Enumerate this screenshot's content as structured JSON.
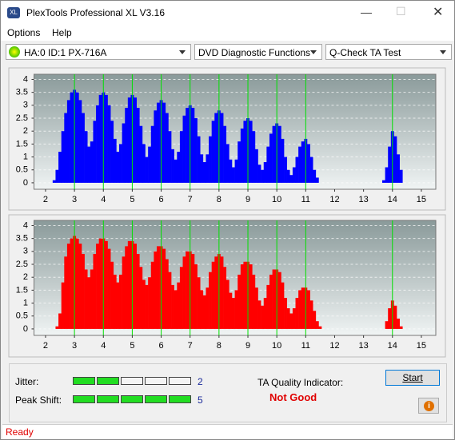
{
  "window": {
    "title": "PlexTools Professional XL V3.16"
  },
  "menu": [
    "Options",
    "Help"
  ],
  "toolbar": {
    "drive": "HA:0 ID:1  PX-716A",
    "function": "DVD Diagnostic Functions",
    "test": "Q-Check TA Test"
  },
  "chart_data": [
    {
      "type": "bar",
      "color": "#0000ff",
      "marker_color": "#00e000",
      "xlim": [
        1.6,
        15.5
      ],
      "ylim": [
        -0.25,
        4.2
      ],
      "xticks": [
        2,
        3,
        4,
        5,
        6,
        7,
        8,
        9,
        10,
        11,
        12,
        13,
        14,
        15
      ],
      "yticks": [
        0,
        0.5,
        1,
        1.5,
        2,
        2.5,
        3,
        3.5,
        4
      ],
      "grid": true,
      "markers": [
        3,
        4,
        5,
        6,
        7,
        8,
        9,
        10,
        11,
        14
      ],
      "x": [
        2,
        2.1,
        2.2,
        2.3,
        2.4,
        2.5,
        2.6,
        2.7,
        2.8,
        2.9,
        3,
        3.1,
        3.2,
        3.3,
        3.4,
        3.5,
        3.6,
        3.7,
        3.8,
        3.9,
        4,
        4.1,
        4.2,
        4.3,
        4.4,
        4.5,
        4.6,
        4.7,
        4.8,
        4.9,
        5,
        5.1,
        5.2,
        5.3,
        5.4,
        5.5,
        5.6,
        5.7,
        5.8,
        5.9,
        6,
        6.1,
        6.2,
        6.3,
        6.4,
        6.5,
        6.6,
        6.7,
        6.8,
        6.9,
        7,
        7.1,
        7.2,
        7.3,
        7.4,
        7.5,
        7.6,
        7.7,
        7.8,
        7.9,
        8,
        8.1,
        8.2,
        8.3,
        8.4,
        8.5,
        8.6,
        8.7,
        8.8,
        8.9,
        9,
        9.1,
        9.2,
        9.3,
        9.4,
        9.5,
        9.6,
        9.7,
        9.8,
        9.9,
        10,
        10.1,
        10.2,
        10.3,
        10.4,
        10.5,
        10.6,
        10.7,
        10.8,
        10.9,
        11,
        11.1,
        11.2,
        11.3,
        11.4,
        11.5,
        11.6,
        11.7,
        11.8,
        11.9,
        12,
        12.1,
        12.2,
        12.3,
        12.4,
        12.5,
        12.6,
        12.7,
        12.8,
        12.9,
        13,
        13.1,
        13.2,
        13.3,
        13.4,
        13.5,
        13.6,
        13.7,
        13.8,
        13.9,
        14,
        14.1,
        14.2,
        14.3,
        14.4,
        14.5,
        14.6,
        14.7,
        14.8,
        14.9
      ],
      "values": [
        0,
        0,
        0,
        0.1,
        0.5,
        1.2,
        2.0,
        2.7,
        3.2,
        3.5,
        3.6,
        3.5,
        3.2,
        2.7,
        2.0,
        1.4,
        1.6,
        2.4,
        3.0,
        3.4,
        3.5,
        3.4,
        3.0,
        2.4,
        1.7,
        1.2,
        1.5,
        2.3,
        2.9,
        3.3,
        3.4,
        3.3,
        2.9,
        2.2,
        1.5,
        1.0,
        1.4,
        2.2,
        2.8,
        3.1,
        3.2,
        3.1,
        2.7,
        2.0,
        1.3,
        0.9,
        1.2,
        2.0,
        2.6,
        2.9,
        3.0,
        2.9,
        2.5,
        1.8,
        1.1,
        0.8,
        1.1,
        1.8,
        2.4,
        2.7,
        2.8,
        2.7,
        2.2,
        1.5,
        0.9,
        0.6,
        0.9,
        1.6,
        2.1,
        2.4,
        2.5,
        2.4,
        2.0,
        1.3,
        0.7,
        0.5,
        0.8,
        1.4,
        1.9,
        2.2,
        2.3,
        2.2,
        1.7,
        1.0,
        0.5,
        0.3,
        0.6,
        1.0,
        1.4,
        1.6,
        1.7,
        1.5,
        1.0,
        0.5,
        0.2,
        0,
        0,
        0,
        0,
        0,
        0,
        0,
        0,
        0,
        0,
        0,
        0,
        0,
        0,
        0,
        0,
        0,
        0,
        0,
        0,
        0,
        0,
        0.1,
        0.6,
        1.4,
        2.0,
        1.8,
        1.1,
        0.5,
        0,
        0,
        0,
        0,
        0,
        0
      ]
    },
    {
      "type": "bar",
      "color": "#ff0000",
      "marker_color": "#00e000",
      "xlim": [
        1.6,
        15.5
      ],
      "ylim": [
        -0.25,
        4.2
      ],
      "xticks": [
        2,
        3,
        4,
        5,
        6,
        7,
        8,
        9,
        10,
        11,
        12,
        13,
        14,
        15
      ],
      "yticks": [
        0,
        0.5,
        1,
        1.5,
        2,
        2.5,
        3,
        3.5,
        4
      ],
      "grid": true,
      "markers": [
        3,
        4,
        5,
        6,
        7,
        8,
        9,
        10,
        11,
        14
      ],
      "x": [
        2,
        2.1,
        2.2,
        2.3,
        2.4,
        2.5,
        2.6,
        2.7,
        2.8,
        2.9,
        3,
        3.1,
        3.2,
        3.3,
        3.4,
        3.5,
        3.6,
        3.7,
        3.8,
        3.9,
        4,
        4.1,
        4.2,
        4.3,
        4.4,
        4.5,
        4.6,
        4.7,
        4.8,
        4.9,
        5,
        5.1,
        5.2,
        5.3,
        5.4,
        5.5,
        5.6,
        5.7,
        5.8,
        5.9,
        6,
        6.1,
        6.2,
        6.3,
        6.4,
        6.5,
        6.6,
        6.7,
        6.8,
        6.9,
        7,
        7.1,
        7.2,
        7.3,
        7.4,
        7.5,
        7.6,
        7.7,
        7.8,
        7.9,
        8,
        8.1,
        8.2,
        8.3,
        8.4,
        8.5,
        8.6,
        8.7,
        8.8,
        8.9,
        9,
        9.1,
        9.2,
        9.3,
        9.4,
        9.5,
        9.6,
        9.7,
        9.8,
        9.9,
        10,
        10.1,
        10.2,
        10.3,
        10.4,
        10.5,
        10.6,
        10.7,
        10.8,
        10.9,
        11,
        11.1,
        11.2,
        11.3,
        11.4,
        11.5,
        11.6,
        11.7,
        11.8,
        11.9,
        12,
        12.1,
        12.2,
        12.3,
        12.4,
        12.5,
        12.6,
        12.7,
        12.8,
        12.9,
        13,
        13.1,
        13.2,
        13.3,
        13.4,
        13.5,
        13.6,
        13.7,
        13.8,
        13.9,
        14,
        14.1,
        14.2,
        14.3,
        14.4,
        14.5,
        14.6,
        14.7,
        14.8,
        14.9
      ],
      "values": [
        0,
        0,
        0,
        0,
        0.1,
        0.6,
        1.8,
        2.8,
        3.3,
        3.5,
        3.6,
        3.5,
        3.3,
        2.9,
        2.3,
        2.0,
        2.3,
        2.9,
        3.3,
        3.5,
        3.5,
        3.4,
        3.1,
        2.6,
        2.1,
        1.8,
        2.1,
        2.8,
        3.2,
        3.4,
        3.4,
        3.3,
        2.9,
        2.4,
        1.9,
        1.7,
        2.0,
        2.6,
        3.0,
        3.2,
        3.2,
        3.1,
        2.7,
        2.2,
        1.7,
        1.5,
        1.8,
        2.4,
        2.8,
        3.0,
        3.0,
        2.9,
        2.5,
        2.0,
        1.5,
        1.3,
        1.6,
        2.2,
        2.6,
        2.8,
        2.9,
        2.8,
        2.4,
        1.9,
        1.4,
        1.2,
        1.5,
        2.1,
        2.5,
        2.6,
        2.6,
        2.5,
        2.1,
        1.6,
        1.1,
        0.9,
        1.2,
        1.7,
        2.1,
        2.3,
        2.3,
        2.2,
        1.8,
        1.2,
        0.8,
        0.6,
        0.8,
        1.2,
        1.5,
        1.6,
        1.6,
        1.5,
        1.1,
        0.7,
        0.3,
        0.1,
        0,
        0,
        0,
        0,
        0,
        0,
        0,
        0,
        0,
        0,
        0,
        0,
        0,
        0,
        0,
        0,
        0,
        0,
        0,
        0,
        0,
        0,
        0.3,
        0.8,
        1.1,
        0.9,
        0.4,
        0.1,
        0,
        0,
        0,
        0,
        0,
        0
      ]
    }
  ],
  "results": {
    "jitter": {
      "label": "Jitter:",
      "value": 2
    },
    "peak_shift": {
      "label": "Peak Shift:",
      "value": 5
    },
    "ta_quality": {
      "label": "TA Quality Indicator:",
      "value": "Not Good"
    }
  },
  "buttons": {
    "start": "Start"
  },
  "status": "Ready"
}
